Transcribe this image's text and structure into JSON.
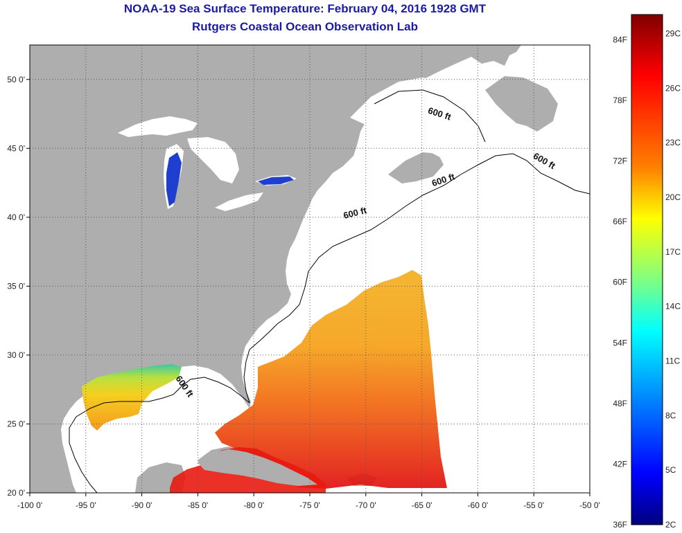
{
  "header": {
    "title": "NOAA-19 Sea Surface Temperature:  February 04, 2016 1928 GMT",
    "subtitle": "Rutgers Coastal Ocean Observation Lab"
  },
  "map": {
    "lon_range": [
      -100,
      -50
    ],
    "lat_range": [
      20,
      52.5
    ],
    "lon_ticks": [
      {
        "value": -100,
        "label": "-100 0'"
      },
      {
        "value": -95,
        "label": "-95 0'"
      },
      {
        "value": -90,
        "label": "-90 0'"
      },
      {
        "value": -85,
        "label": "-85 0'"
      },
      {
        "value": -80,
        "label": "-80 0'"
      },
      {
        "value": -75,
        "label": "-75 0'"
      },
      {
        "value": -70,
        "label": "-70 0'"
      },
      {
        "value": -65,
        "label": "-65 0'"
      },
      {
        "value": -60,
        "label": "-60 0'"
      },
      {
        "value": -55,
        "label": "-55 0'"
      },
      {
        "value": -50,
        "label": "-50 0'"
      }
    ],
    "lat_ticks": [
      {
        "value": 20,
        "label": "20 0'"
      },
      {
        "value": 25,
        "label": "25 0'"
      },
      {
        "value": 30,
        "label": "30 0'"
      },
      {
        "value": 35,
        "label": "35 0'"
      },
      {
        "value": 40,
        "label": "40 0'"
      },
      {
        "value": 45,
        "label": "45 0'"
      },
      {
        "value": 50,
        "label": "50 0'"
      }
    ],
    "grid": "dotted",
    "contour_labels": [
      {
        "text": "600 ft",
        "lon": -63.5,
        "lat": 47.3,
        "rotate": 18
      },
      {
        "text": "600 ft",
        "lon": -54.2,
        "lat": 43.9,
        "rotate": 30
      },
      {
        "text": "600 ft",
        "lon": -63.0,
        "lat": 42.5,
        "rotate": -18
      },
      {
        "text": "600 ft",
        "lon": -70.9,
        "lat": 40.1,
        "rotate": -14
      },
      {
        "text": "600 ft",
        "lon": -86.4,
        "lat": 27.6,
        "rotate": 55
      }
    ]
  },
  "colorbar": {
    "fahrenheit_labels": [
      {
        "label": "84F",
        "value_f": 84
      },
      {
        "label": "78F",
        "value_f": 78
      },
      {
        "label": "72F",
        "value_f": 72
      },
      {
        "label": "66F",
        "value_f": 66
      },
      {
        "label": "60F",
        "value_f": 60
      },
      {
        "label": "54F",
        "value_f": 54
      },
      {
        "label": "48F",
        "value_f": 48
      },
      {
        "label": "42F",
        "value_f": 42
      },
      {
        "label": "36F",
        "value_f": 36
      }
    ],
    "celsius_labels": [
      {
        "label": "29C",
        "value_c": 29
      },
      {
        "label": "26C",
        "value_c": 26
      },
      {
        "label": "23C",
        "value_c": 23
      },
      {
        "label": "20C",
        "value_c": 20
      },
      {
        "label": "17C",
        "value_c": 17
      },
      {
        "label": "14C",
        "value_c": 14
      },
      {
        "label": "11C",
        "value_c": 11
      },
      {
        "label": "8C",
        "value_c": 8
      },
      {
        "label": "5C",
        "value_c": 5
      },
      {
        "label": "2C",
        "value_c": 2
      }
    ],
    "colors": [
      "#7f0000",
      "#ff0000",
      "#ff8000",
      "#ffff00",
      "#80ff80",
      "#00ffff",
      "#0080ff",
      "#0000ff",
      "#00007f"
    ]
  },
  "colors": {
    "land": "#aeaeae",
    "ocean": "#ffffff",
    "lakes_ice": "#ffffff",
    "lake_water": "#1f3fd0",
    "title": "#1a1aa6"
  }
}
